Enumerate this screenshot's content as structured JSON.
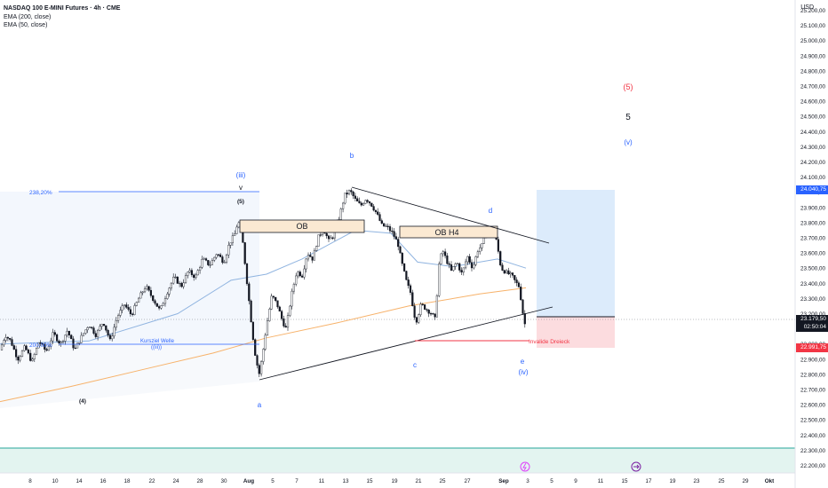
{
  "header": {
    "title": "NASDAQ 100 E-MINI Futures · 4h · CME",
    "indicator_1": "EMA (200, close)",
    "indicator_2": "EMA (50, close)",
    "currency": "USD"
  },
  "chart_data": {
    "type": "candlestick",
    "xaxis_ticks": [
      "8",
      "10",
      "14",
      "16",
      "18",
      "22",
      "24",
      "28",
      "30",
      "Aug",
      "5",
      "7",
      "11",
      "13",
      "15",
      "19",
      "21",
      "25",
      "27",
      "Sep",
      "3",
      "5",
      "9",
      "11",
      "15",
      "17",
      "19",
      "23",
      "25",
      "29",
      "Okt"
    ],
    "yaxis_ticks": [
      "25.200,00",
      "25.100,00",
      "25.000,00",
      "24.900,00",
      "24.800,00",
      "24.700,00",
      "24.600,00",
      "24.500,00",
      "24.400,00",
      "24.300,00",
      "24.200,00",
      "24.100,00",
      "24.000,00",
      "23.900,00",
      "23.800,00",
      "23.700,00",
      "23.600,00",
      "23.500,00",
      "23.400,00",
      "23.300,00",
      "23.200,00",
      "23.100,00",
      "23.000,00",
      "22.900,00",
      "22.800,00",
      "22.700,00",
      "22.600,00",
      "22.500,00",
      "22.400,00",
      "22.300,00",
      "22.200,00"
    ],
    "ylim": [
      22150,
      25250
    ],
    "price_tags": {
      "target": "24.040,75",
      "last_price": "23.179,50",
      "countdown": "02:50:04",
      "stop": "22.991,75"
    },
    "price_path": [
      [
        0,
        22960
      ],
      [
        6,
        23060
      ],
      [
        12,
        23020
      ],
      [
        20,
        22900
      ],
      [
        28,
        22980
      ],
      [
        36,
        22880
      ],
      [
        44,
        23020
      ],
      [
        52,
        22950
      ],
      [
        60,
        23070
      ],
      [
        68,
        23000
      ],
      [
        76,
        23090
      ],
      [
        84,
        22960
      ],
      [
        92,
        23050
      ],
      [
        100,
        23130
      ],
      [
        108,
        23060
      ],
      [
        116,
        23150
      ],
      [
        124,
        23020
      ],
      [
        132,
        23180
      ],
      [
        140,
        23260
      ],
      [
        148,
        23190
      ],
      [
        156,
        23300
      ],
      [
        164,
        23380
      ],
      [
        172,
        23300
      ],
      [
        180,
        23220
      ],
      [
        188,
        23340
      ],
      [
        196,
        23440
      ],
      [
        204,
        23380
      ],
      [
        212,
        23480
      ],
      [
        220,
        23440
      ],
      [
        228,
        23560
      ],
      [
        236,
        23520
      ],
      [
        244,
        23600
      ],
      [
        252,
        23540
      ],
      [
        258,
        23660
      ],
      [
        264,
        23720
      ],
      [
        268,
        23810
      ],
      [
        272,
        23740
      ],
      [
        276,
        23520
      ],
      [
        280,
        23300
      ],
      [
        284,
        23080
      ],
      [
        288,
        22900
      ],
      [
        292,
        22800
      ],
      [
        296,
        22950
      ],
      [
        300,
        23120
      ],
      [
        306,
        23320
      ],
      [
        312,
        23260
      ],
      [
        318,
        23150
      ],
      [
        322,
        23100
      ],
      [
        328,
        23320
      ],
      [
        334,
        23480
      ],
      [
        340,
        23450
      ],
      [
        346,
        23600
      ],
      [
        352,
        23560
      ],
      [
        358,
        23700
      ],
      [
        364,
        23760
      ],
      [
        370,
        23680
      ],
      [
        376,
        23720
      ],
      [
        382,
        23840
      ],
      [
        388,
        23980
      ],
      [
        394,
        24010
      ],
      [
        400,
        23950
      ],
      [
        406,
        23910
      ],
      [
        412,
        23960
      ],
      [
        418,
        23920
      ],
      [
        424,
        23860
      ],
      [
        430,
        23780
      ],
      [
        436,
        23770
      ],
      [
        442,
        23730
      ],
      [
        448,
        23660
      ],
      [
        452,
        23540
      ],
      [
        458,
        23400
      ],
      [
        462,
        23340
      ],
      [
        468,
        23140
      ],
      [
        474,
        23260
      ],
      [
        480,
        23230
      ],
      [
        486,
        23200
      ],
      [
        490,
        23160
      ],
      [
        494,
        23520
      ],
      [
        498,
        23620
      ],
      [
        502,
        23560
      ],
      [
        508,
        23480
      ],
      [
        514,
        23540
      ],
      [
        520,
        23460
      ],
      [
        526,
        23580
      ],
      [
        532,
        23500
      ],
      [
        538,
        23620
      ],
      [
        544,
        23660
      ],
      [
        548,
        23780
      ],
      [
        552,
        23700
      ],
      [
        556,
        23760
      ],
      [
        560,
        23640
      ],
      [
        564,
        23500
      ],
      [
        570,
        23470
      ],
      [
        576,
        23450
      ],
      [
        580,
        23410
      ],
      [
        584,
        23380
      ],
      [
        588,
        23240
      ],
      [
        590,
        23100
      ],
      [
        592,
        23179.5
      ]
    ],
    "ema_200": [
      [
        0,
        22620
      ],
      [
        80,
        22720
      ],
      [
        160,
        22830
      ],
      [
        240,
        22940
      ],
      [
        300,
        23040
      ],
      [
        380,
        23140
      ],
      [
        460,
        23250
      ],
      [
        540,
        23330
      ],
      [
        592,
        23370
      ]
    ],
    "ema_50": [
      [
        0,
        23000
      ],
      [
        100,
        23020
      ],
      [
        200,
        23200
      ],
      [
        260,
        23420
      ],
      [
        300,
        23460
      ],
      [
        340,
        23560
      ],
      [
        400,
        23750
      ],
      [
        440,
        23730
      ],
      [
        470,
        23540
      ],
      [
        510,
        23510
      ],
      [
        560,
        23560
      ],
      [
        592,
        23500
      ]
    ],
    "annotations": {
      "wave_labels": [
        "(iii)",
        "v",
        "(5)",
        "b",
        "d",
        "OB",
        "OB H4",
        "a",
        "c",
        "e",
        "(iv)",
        "(4)",
        "(5)",
        "5",
        "(v)"
      ],
      "fib_top": "238,20%",
      "fib_bottom": "200,00%",
      "kursziel": "Kursziel Welle",
      "kursziel_sub": "((iii))",
      "invalid": "Invalide Dreieck"
    }
  },
  "colors": {
    "up": "#26a69a",
    "ema200": "#f7b26a",
    "ema50": "#90b4e0",
    "wave_blue": "#2962ff",
    "red": "#f23645",
    "ob_fill": "#fbe9d2",
    "target_zone": "#dcebfb",
    "stop_zone": "#fcdcdf"
  }
}
